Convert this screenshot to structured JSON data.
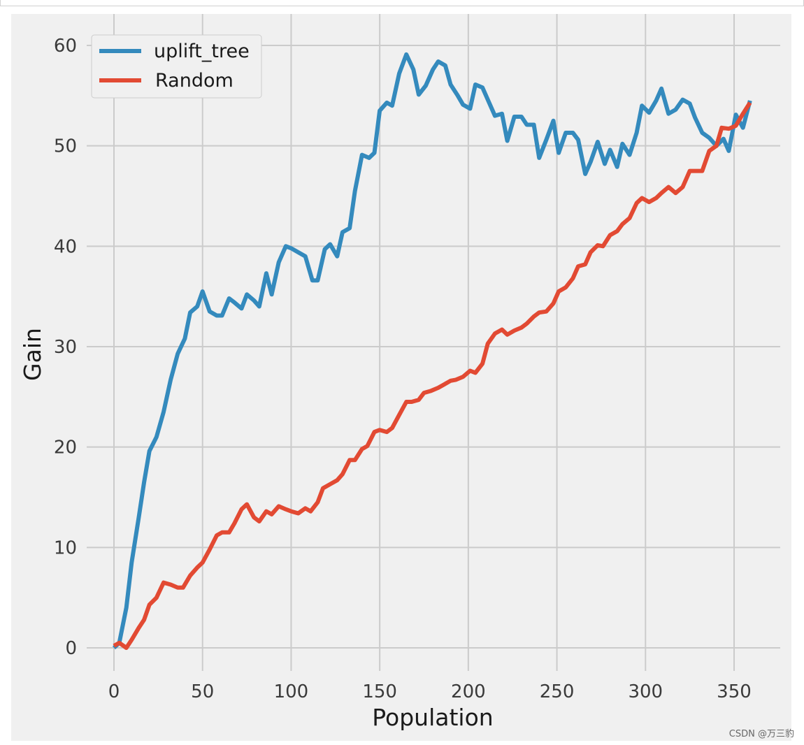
{
  "chart_data": {
    "type": "line",
    "title": "",
    "xlabel": "Population",
    "ylabel": "Gain",
    "xlim": [
      -15,
      375
    ],
    "ylim": [
      -3,
      61.5
    ],
    "xticks": [
      0,
      50,
      100,
      150,
      200,
      250,
      300,
      350
    ],
    "yticks": [
      0,
      10,
      20,
      30,
      40,
      50,
      60
    ],
    "grid": true,
    "legend_position": "top-left",
    "series": [
      {
        "name": "uplift_tree",
        "color": "#348ABD",
        "points": [
          [
            0,
            0
          ],
          [
            3,
            0.5
          ],
          [
            7,
            4
          ],
          [
            10,
            8.5
          ],
          [
            14,
            13
          ],
          [
            17,
            16.5
          ],
          [
            20,
            19.6
          ],
          [
            24,
            21
          ],
          [
            28,
            23.5
          ],
          [
            32,
            26.7
          ],
          [
            36,
            29.3
          ],
          [
            40,
            30.8
          ],
          [
            43,
            33.4
          ],
          [
            47,
            34
          ],
          [
            50,
            35.5
          ],
          [
            54,
            33.5
          ],
          [
            58,
            33.1
          ],
          [
            61,
            33.1
          ],
          [
            65,
            34.8
          ],
          [
            68,
            34.4
          ],
          [
            72,
            33.8
          ],
          [
            75,
            35.2
          ],
          [
            79,
            34.6
          ],
          [
            82,
            34
          ],
          [
            86,
            37.3
          ],
          [
            89,
            35.2
          ],
          [
            93,
            38.4
          ],
          [
            97,
            40
          ],
          [
            100,
            39.8
          ],
          [
            104,
            39.4
          ],
          [
            108,
            39
          ],
          [
            112,
            36.6
          ],
          [
            115,
            36.6
          ],
          [
            119,
            39.7
          ],
          [
            122,
            40.2
          ],
          [
            126,
            39
          ],
          [
            129,
            41.4
          ],
          [
            133,
            41.8
          ],
          [
            136,
            45.5
          ],
          [
            140,
            49.1
          ],
          [
            144,
            48.8
          ],
          [
            147,
            49.3
          ],
          [
            150,
            53.5
          ],
          [
            154,
            54.3
          ],
          [
            157,
            54
          ],
          [
            161,
            57.2
          ],
          [
            165,
            59.1
          ],
          [
            169,
            57.6
          ],
          [
            172,
            55.1
          ],
          [
            176,
            56
          ],
          [
            180,
            57.6
          ],
          [
            183,
            58.4
          ],
          [
            187,
            58
          ],
          [
            190,
            56.1
          ],
          [
            194,
            55
          ],
          [
            197,
            54.1
          ],
          [
            201,
            53.7
          ],
          [
            204,
            56.1
          ],
          [
            208,
            55.8
          ],
          [
            211,
            54.6
          ],
          [
            215,
            53
          ],
          [
            219,
            53.2
          ],
          [
            222,
            50.5
          ],
          [
            226,
            52.9
          ],
          [
            230,
            52.9
          ],
          [
            233,
            52.1
          ],
          [
            237,
            52.1
          ],
          [
            240,
            48.8
          ],
          [
            244,
            50.6
          ],
          [
            248,
            52.5
          ],
          [
            251,
            49.3
          ],
          [
            255,
            51.3
          ],
          [
            259,
            51.3
          ],
          [
            262,
            50.6
          ],
          [
            266,
            47.2
          ],
          [
            269,
            48.4
          ],
          [
            273,
            50.4
          ],
          [
            277,
            48.2
          ],
          [
            280,
            49.6
          ],
          [
            284,
            47.9
          ],
          [
            287,
            50.2
          ],
          [
            291,
            49.1
          ],
          [
            295,
            51.3
          ],
          [
            298,
            54
          ],
          [
            302,
            53.3
          ],
          [
            306,
            54.5
          ],
          [
            309,
            55.7
          ],
          [
            313,
            53.2
          ],
          [
            317,
            53.6
          ],
          [
            321,
            54.6
          ],
          [
            325,
            54.2
          ],
          [
            328,
            52.8
          ],
          [
            332,
            51.3
          ],
          [
            336,
            50.8
          ],
          [
            340,
            50
          ],
          [
            344,
            50.7
          ],
          [
            347,
            49.5
          ],
          [
            351,
            53.1
          ],
          [
            355,
            51.8
          ],
          [
            359,
            54.5
          ]
        ]
      },
      {
        "name": "Random",
        "color": "#E24A33",
        "points": [
          [
            0,
            0.2
          ],
          [
            3,
            0.5
          ],
          [
            7,
            0
          ],
          [
            10,
            0.8
          ],
          [
            14,
            2
          ],
          [
            17,
            2.8
          ],
          [
            20,
            4.3
          ],
          [
            24,
            5
          ],
          [
            28,
            6.5
          ],
          [
            32,
            6.3
          ],
          [
            36,
            6
          ],
          [
            39,
            6
          ],
          [
            43,
            7.2
          ],
          [
            47,
            8
          ],
          [
            50,
            8.5
          ],
          [
            54,
            9.8
          ],
          [
            58,
            11.2
          ],
          [
            61,
            11.5
          ],
          [
            65,
            11.5
          ],
          [
            68,
            12.4
          ],
          [
            72,
            13.8
          ],
          [
            75,
            14.3
          ],
          [
            79,
            13
          ],
          [
            82,
            12.6
          ],
          [
            86,
            13.6
          ],
          [
            89,
            13.3
          ],
          [
            93,
            14.1
          ],
          [
            97,
            13.8
          ],
          [
            100,
            13.6
          ],
          [
            104,
            13.4
          ],
          [
            108,
            13.9
          ],
          [
            111,
            13.6
          ],
          [
            115,
            14.5
          ],
          [
            118,
            15.9
          ],
          [
            122,
            16.3
          ],
          [
            126,
            16.7
          ],
          [
            129,
            17.3
          ],
          [
            133,
            18.7
          ],
          [
            136,
            18.7
          ],
          [
            140,
            19.8
          ],
          [
            143,
            20.1
          ],
          [
            147,
            21.5
          ],
          [
            150,
            21.7
          ],
          [
            154,
            21.5
          ],
          [
            157,
            21.9
          ],
          [
            161,
            23.2
          ],
          [
            165,
            24.5
          ],
          [
            168,
            24.5
          ],
          [
            172,
            24.7
          ],
          [
            175,
            25.4
          ],
          [
            179,
            25.6
          ],
          [
            183,
            25.9
          ],
          [
            186,
            26.2
          ],
          [
            190,
            26.6
          ],
          [
            193,
            26.7
          ],
          [
            197,
            27
          ],
          [
            201,
            27.6
          ],
          [
            204,
            27.4
          ],
          [
            208,
            28.3
          ],
          [
            211,
            30.3
          ],
          [
            215,
            31.3
          ],
          [
            219,
            31.7
          ],
          [
            222,
            31.2
          ],
          [
            226,
            31.6
          ],
          [
            230,
            31.9
          ],
          [
            233,
            32.3
          ],
          [
            237,
            33
          ],
          [
            240,
            33.4
          ],
          [
            244,
            33.5
          ],
          [
            248,
            34.3
          ],
          [
            251,
            35.5
          ],
          [
            255,
            35.9
          ],
          [
            259,
            36.8
          ],
          [
            262,
            38
          ],
          [
            266,
            38.2
          ],
          [
            269,
            39.4
          ],
          [
            273,
            40.1
          ],
          [
            276,
            40
          ],
          [
            280,
            41.1
          ],
          [
            284,
            41.5
          ],
          [
            287,
            42.2
          ],
          [
            291,
            42.8
          ],
          [
            295,
            44.3
          ],
          [
            298,
            44.8
          ],
          [
            302,
            44.4
          ],
          [
            306,
            44.8
          ],
          [
            309,
            45.3
          ],
          [
            313,
            45.9
          ],
          [
            317,
            45.3
          ],
          [
            321,
            45.9
          ],
          [
            325,
            47.5
          ],
          [
            328,
            47.5
          ],
          [
            332,
            47.5
          ],
          [
            336,
            49.5
          ],
          [
            340,
            50
          ],
          [
            343,
            51.8
          ],
          [
            347,
            51.7
          ],
          [
            351,
            52
          ],
          [
            355,
            53.2
          ],
          [
            359,
            54.3
          ]
        ]
      }
    ]
  },
  "watermark": "CSDN @万三豹"
}
